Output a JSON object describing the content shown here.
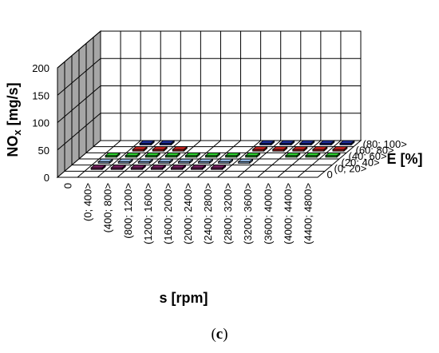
{
  "chart_data": {
    "type": "bar3d",
    "panel_label": "c",
    "zlabel": "NOx [mg/s]",
    "zlabel_main": "NO",
    "zlabel_sub": "x",
    "zlabel_unit": " [mg/s]",
    "xlabel": "s [rpm]",
    "ylabel": "E [%]",
    "zlim": [
      0,
      200
    ],
    "z_ticks": [
      "0",
      "50",
      "100",
      "150",
      "200"
    ],
    "x_categories": [
      "0",
      "(0; 400>",
      "(400; 800>",
      "(800; 1200>",
      "(1200; 1600>",
      "(1600; 2000>",
      "(2000; 2400>",
      "(2400; 2800>",
      "(2800; 3200>",
      "(3200; 3600>",
      "(3600; 4000>",
      "(4000; 4400>",
      "(4400; 4800>"
    ],
    "y_categories": [
      "0",
      "(0; 20>",
      "(20; 40>",
      "(40; 60>",
      "(60; 80>",
      "(80; 100>"
    ],
    "series": [
      {
        "color": "#7a1f63",
        "values": [
          null,
          3,
          3,
          3,
          3,
          3,
          3,
          3,
          null,
          null,
          null,
          null,
          null
        ]
      },
      {
        "color": "#8fb3dc",
        "values": [
          null,
          3,
          3,
          3,
          3,
          3,
          3,
          3,
          3,
          null,
          null,
          null,
          null
        ]
      },
      {
        "color": "#2ecf2e",
        "values": [
          null,
          3,
          3,
          3,
          3,
          3,
          3,
          3,
          3,
          null,
          3,
          3,
          3
        ]
      },
      {
        "color": "#c4221f",
        "values": [
          null,
          null,
          3,
          3,
          3,
          null,
          null,
          null,
          3,
          3,
          3,
          3,
          3
        ]
      },
      {
        "color": "#1f2f9c",
        "values": [
          null,
          null,
          3,
          3,
          null,
          null,
          null,
          null,
          3,
          3,
          3,
          3,
          3
        ]
      }
    ],
    "grid": true
  }
}
